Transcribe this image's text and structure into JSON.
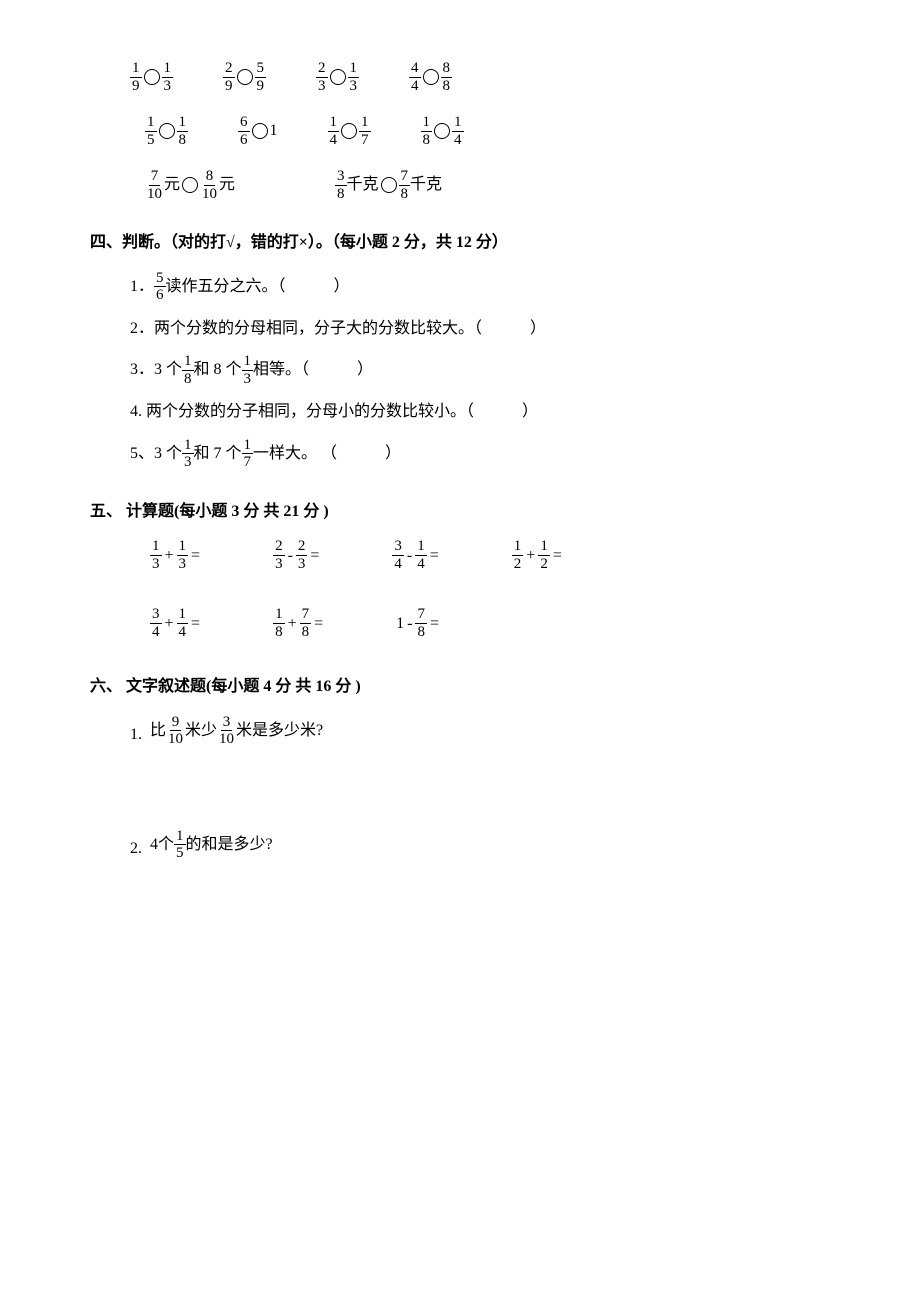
{
  "compare": {
    "row1": [
      {
        "a_n": "1",
        "a_d": "9",
        "b_n": "1",
        "b_d": "3"
      },
      {
        "a_n": "2",
        "a_d": "9",
        "b_n": "5",
        "b_d": "9"
      },
      {
        "a_n": "2",
        "a_d": "3",
        "b_n": "1",
        "b_d": "3"
      },
      {
        "a_n": "4",
        "a_d": "4",
        "b_n": "8",
        "b_d": "8"
      }
    ],
    "row2": [
      {
        "a_n": "1",
        "a_d": "5",
        "b_n": "1",
        "b_d": "8"
      },
      {
        "a_n": "6",
        "a_d": "6",
        "b_int": "1"
      },
      {
        "a_n": "1",
        "a_d": "4",
        "b_n": "1",
        "b_d": "7"
      },
      {
        "a_n": "1",
        "a_d": "8",
        "b_n": "1",
        "b_d": "4"
      }
    ],
    "row3": [
      {
        "a_n": "7",
        "a_d": "10",
        "unit_a": "元",
        "b_n": "8",
        "b_d": "10",
        "unit_b": " 元"
      },
      {
        "a_n": "3",
        "a_d": "8",
        "unit_a": "千克",
        "b_n": "7",
        "b_d": "8",
        "unit_b": "千克"
      }
    ]
  },
  "section4": {
    "title": "四、判断。（对的打√，错的打×）。（每小题 2 分，共 12 分）",
    "q1_pre": "1．",
    "q1_n": "5",
    "q1_d": "6",
    "q1_post": " 读作五分之六。（　　　）",
    "q2": "2．两个分数的分母相同，分子大的分数比较大。（　　　）",
    "q3_pre": "3．3 个",
    "q3_n1": "1",
    "q3_d1": "8",
    "q3_mid": "和 8 个",
    "q3_n2": "1",
    "q3_d2": "3",
    "q3_post": "相等。（　　　）",
    "q4": "4. 两个分数的分子相同，分母小的分数比较小。（　　　）",
    "q5_pre": "5、3 个",
    "q5_n1": "1",
    "q5_d1": "3",
    "q5_mid": "和 7 个",
    "q5_n2": "1",
    "q5_d2": "7",
    "q5_post": "一样大。 （　　　）"
  },
  "section5": {
    "title": "五、 计算题(每小题 3 分 共 21 分 )",
    "row1": [
      {
        "a_n": "1",
        "a_d": "3",
        "op": "+",
        "b_n": "1",
        "b_d": "3",
        "eq": "="
      },
      {
        "a_n": "2",
        "a_d": "3",
        "op": "-",
        "b_n": "2",
        "b_d": "3",
        "eq": "="
      },
      {
        "a_n": "3",
        "a_d": "4",
        "op": "-",
        "b_n": "1",
        "b_d": "4",
        "eq": "="
      },
      {
        "a_n": "1",
        "a_d": "2",
        "op": "+",
        "b_n": "1",
        "b_d": "2",
        "eq": "="
      }
    ],
    "row2": [
      {
        "a_n": "3",
        "a_d": "4",
        "op": "+",
        "b_n": "1",
        "b_d": "4",
        "eq": "="
      },
      {
        "a_n": "1",
        "a_d": "8",
        "op": "+",
        "b_n": "7",
        "b_d": "8",
        "eq": "="
      },
      {
        "a_int": "1",
        "op": "-",
        "b_n": "7",
        "b_d": "8",
        "eq": "="
      }
    ]
  },
  "section6": {
    "title": "六、 文字叙述题(每小题 4 分 共 16 分 )",
    "q1_idx": "1.",
    "q1_pre": "比",
    "q1_an": "9",
    "q1_ad": "10",
    "q1_mid": "米少",
    "q1_bn": "3",
    "q1_bd": "10",
    "q1_post": "米是多少米?",
    "q2_idx": "2.",
    "q2_pre": "4个",
    "q2_n": "1",
    "q2_d": "5",
    "q2_post": "的和是多少?"
  }
}
